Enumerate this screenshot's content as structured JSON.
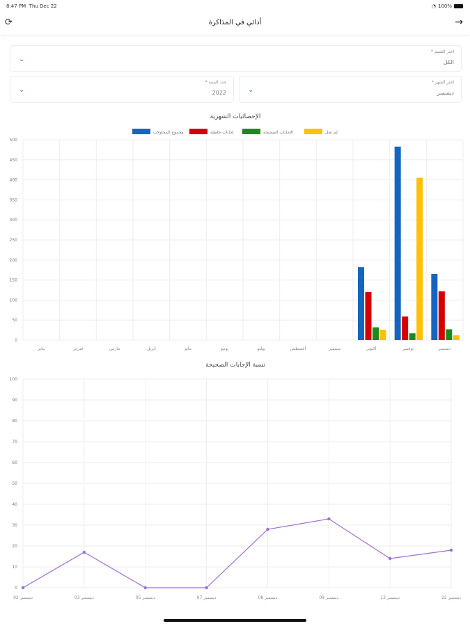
{
  "status": {
    "time": "8:47 PM",
    "date": "Thu Dec 22",
    "battery": "100%"
  },
  "header": {
    "title": "أدائي في المذاكرة"
  },
  "filters": {
    "section": {
      "label": "اختر القسم *",
      "value": "الكل"
    },
    "month": {
      "label": "اختر الشهر *",
      "value": "ديسمبر"
    },
    "year": {
      "label": "حدد السنة *",
      "value": "2022"
    }
  },
  "colors": {
    "total": "#1565c0",
    "wrong": "#d50000",
    "correct": "#1b8a1b",
    "unsolved": "#ffc107",
    "line": "#9c6fd0"
  },
  "chart_data": [
    {
      "type": "bar",
      "title": "الإحصائيات الشهرية",
      "ylim": [
        0,
        500
      ],
      "yticks": [
        0,
        50,
        100,
        150,
        200,
        250,
        300,
        350,
        400,
        450,
        500
      ],
      "categories": [
        "يناير",
        "فبراير",
        "مارس",
        "أبريل",
        "مايو",
        "يونيو",
        "يوليو",
        "أغسطس",
        "سبتمبر",
        "أكتوبر",
        "نوفمبر",
        "ديسمبر"
      ],
      "series": [
        {
          "name": "مجموع المحاولات",
          "color": "#1565c0",
          "values": [
            0,
            0,
            0,
            0,
            0,
            0,
            0,
            0,
            0,
            182,
            483,
            165
          ]
        },
        {
          "name": "إجابات خاطئة",
          "color": "#d50000",
          "values": [
            0,
            0,
            0,
            0,
            0,
            0,
            0,
            0,
            0,
            120,
            59,
            122
          ]
        },
        {
          "name": "الإجابات الصحيحة",
          "color": "#1b8a1b",
          "values": [
            0,
            0,
            0,
            0,
            0,
            0,
            0,
            0,
            0,
            32,
            17,
            27
          ]
        },
        {
          "name": "لم تحل",
          "color": "#ffc107",
          "values": [
            0,
            0,
            0,
            0,
            0,
            0,
            0,
            0,
            0,
            26,
            405,
            12
          ]
        }
      ],
      "legend": "top",
      "grid": true
    },
    {
      "type": "line",
      "title": "نسبة الإجابات الصحيحة",
      "ylim": [
        0,
        100
      ],
      "yticks": [
        0,
        10,
        20,
        30,
        40,
        50,
        60,
        70,
        80,
        90,
        100
      ],
      "categories": [
        "02 ديسمبر",
        "03 ديسمبر",
        "05 ديسمبر",
        "07 ديسمبر",
        "08 ديسمبر",
        "09 ديسمبر",
        "13 ديسمبر",
        "22 ديسمبر"
      ],
      "values": [
        0,
        17,
        0,
        0,
        28,
        33,
        14,
        18
      ],
      "grid": true
    }
  ]
}
